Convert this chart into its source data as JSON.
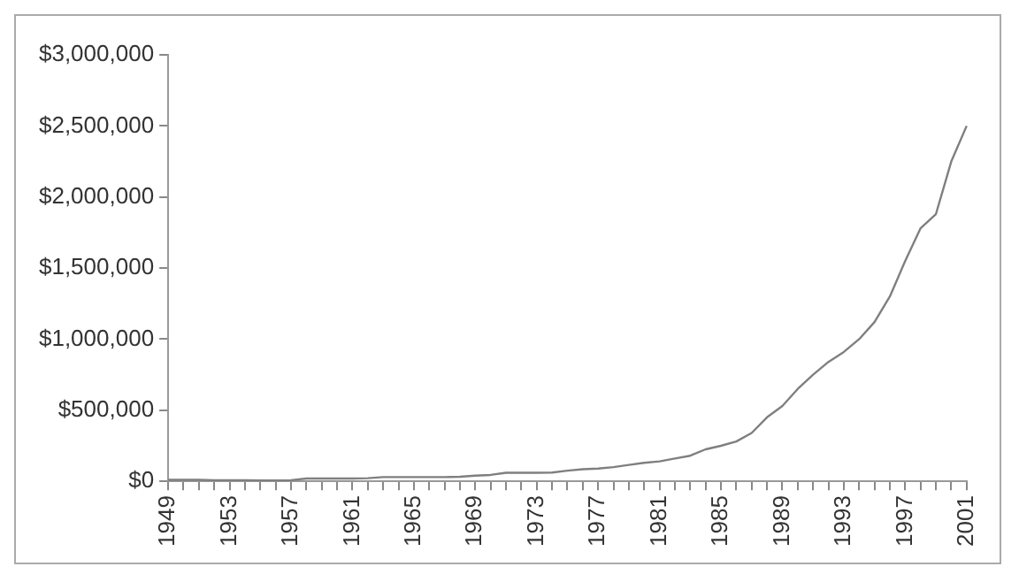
{
  "chart_data": {
    "type": "line",
    "categories": [
      "1949",
      null,
      null,
      null,
      "1953",
      null,
      null,
      null,
      "1957",
      null,
      null,
      null,
      "1961",
      null,
      null,
      null,
      "1965",
      null,
      null,
      null,
      "1969",
      null,
      null,
      null,
      "1973",
      null,
      null,
      null,
      "1977",
      null,
      null,
      null,
      "1981",
      null,
      null,
      null,
      "1985",
      null,
      null,
      null,
      "1989",
      null,
      null,
      null,
      "1993",
      null,
      null,
      null,
      "1997",
      null,
      null,
      null,
      "2001"
    ],
    "series": [
      {
        "color": "#7f7f7f",
        "values": [
          10000,
          10000,
          10000,
          8000,
          8000,
          8000,
          6000,
          6000,
          8000,
          20000,
          20000,
          20000,
          20000,
          22000,
          30000,
          30000,
          30000,
          30000,
          30000,
          32000,
          40000,
          45000,
          60000,
          60000,
          60000,
          62000,
          75000,
          85000,
          90000,
          100000,
          115000,
          130000,
          140000,
          160000,
          180000,
          225000,
          250000,
          280000,
          340000,
          450000,
          530000,
          650000,
          750000,
          840000,
          910000,
          1000000,
          1120000,
          1300000,
          1550000,
          1780000,
          1880000,
          2250000,
          2500000
        ]
      }
    ],
    "ylim": [
      0,
      3000000
    ],
    "yticks": [
      {
        "value": 0,
        "label": "$0"
      },
      {
        "value": 500000,
        "label": "$500,000"
      },
      {
        "value": 1000000,
        "label": "$1,000,000"
      },
      {
        "value": 1500000,
        "label": "$1,500,000"
      },
      {
        "value": 2000000,
        "label": "$2,000,000"
      },
      {
        "value": 2500000,
        "label": "$2,500,000"
      },
      {
        "value": 3000000,
        "label": "$3,000,000"
      }
    ],
    "grid": false,
    "legend": false,
    "marker": "none",
    "line_style": "solid"
  }
}
